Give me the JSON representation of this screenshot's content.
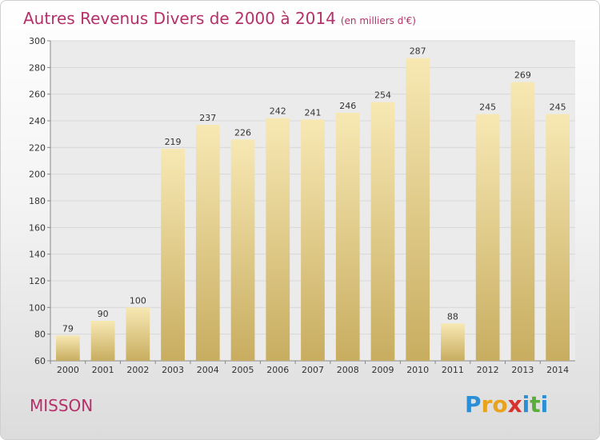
{
  "header": {
    "title": "Autres Revenus Divers de 2000 à 2014",
    "subtitle": "(en milliers d'€)"
  },
  "footer": {
    "city": "MISSON",
    "logo_letters": [
      "P",
      "r",
      "o",
      "x",
      "i",
      "t",
      "i"
    ],
    "logo_colors": [
      "#2a8fd6",
      "#e8a21c",
      "#e8a21c",
      "#d8322e",
      "#2a8fd6",
      "#5cae3a",
      "#2a8fd6"
    ]
  },
  "colors": {
    "title": "#b5306a",
    "bar_light": "#f7e8b3",
    "bar_dark": "#c8ad60",
    "grid": "#d8d8d8",
    "plot_bg": "#ebebeb"
  },
  "chart_data": {
    "type": "bar",
    "categories": [
      "2000",
      "2001",
      "2002",
      "2003",
      "2004",
      "2005",
      "2006",
      "2007",
      "2008",
      "2009",
      "2010",
      "2011",
      "2012",
      "2013",
      "2014"
    ],
    "values": [
      79,
      90,
      100,
      219,
      237,
      226,
      242,
      241,
      246,
      254,
      287,
      88,
      245,
      269,
      245
    ],
    "ylim": [
      60,
      300
    ],
    "yticks": [
      60,
      80,
      100,
      120,
      140,
      160,
      180,
      200,
      220,
      240,
      260,
      280,
      300
    ],
    "grid": true
  }
}
